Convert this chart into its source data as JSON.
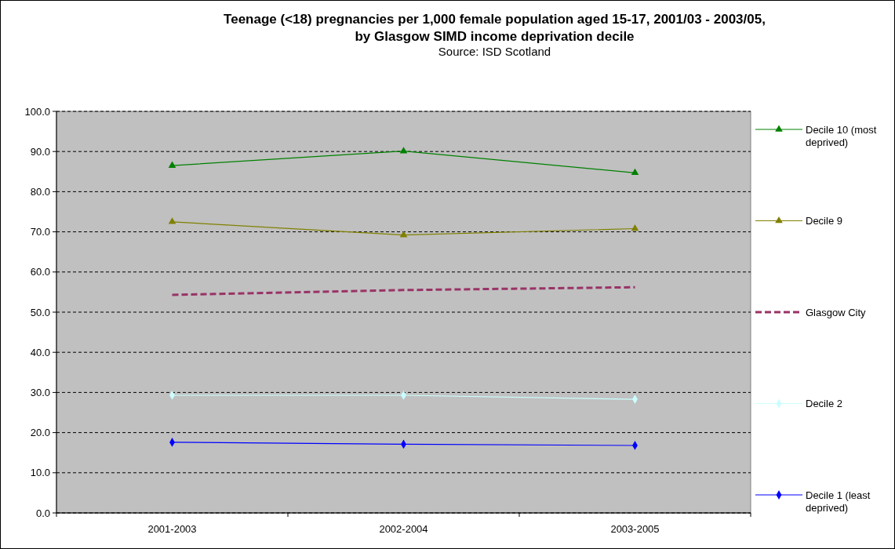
{
  "chart_data": {
    "type": "line",
    "title": "Teenage (<18) pregnancies per 1,000 female population aged 15-17, 2001/03 - 2003/05,\nby Glasgow SIMD income deprivation decile",
    "subtitle": "Source: ISD Scotland",
    "categories": [
      "2001-2003",
      "2002-2004",
      "2003-2005"
    ],
    "series": [
      {
        "name": "Decile 10 (most deprived)",
        "color": "#008000",
        "marker": "triangle",
        "line_style": "solid",
        "values": [
          86.5,
          90.1,
          84.7
        ]
      },
      {
        "name": "Decile 9",
        "color": "#808000",
        "marker": "triangle",
        "line_style": "solid",
        "values": [
          72.5,
          69.2,
          70.8
        ]
      },
      {
        "name": "Glasgow City",
        "color": "#993366",
        "marker": "none",
        "line_style": "dashed",
        "values": [
          54.3,
          55.5,
          56.2
        ]
      },
      {
        "name": "Decile 2",
        "color": "#ccffff",
        "marker": "diamond",
        "line_style": "solid",
        "values": [
          29.3,
          29.3,
          28.3
        ]
      },
      {
        "name": "Decile 1 (least deprived)",
        "color": "#0000ff",
        "marker": "diamond",
        "line_style": "solid",
        "values": [
          17.6,
          17.1,
          16.8
        ]
      }
    ],
    "ylim": [
      0,
      100
    ],
    "yticks": [
      {
        "value": 0,
        "label": "0.0"
      },
      {
        "value": 10,
        "label": "10.0"
      },
      {
        "value": 20,
        "label": "20.0"
      },
      {
        "value": 30,
        "label": "30.0"
      },
      {
        "value": 40,
        "label": "40.0"
      },
      {
        "value": 50,
        "label": "50.0"
      },
      {
        "value": 60,
        "label": "60.0"
      },
      {
        "value": 70,
        "label": "70.0"
      },
      {
        "value": 80,
        "label": "80.0"
      },
      {
        "value": 90,
        "label": "90.0"
      },
      {
        "value": 100,
        "label": "100.0"
      }
    ],
    "grid": "y",
    "legend": "right"
  }
}
